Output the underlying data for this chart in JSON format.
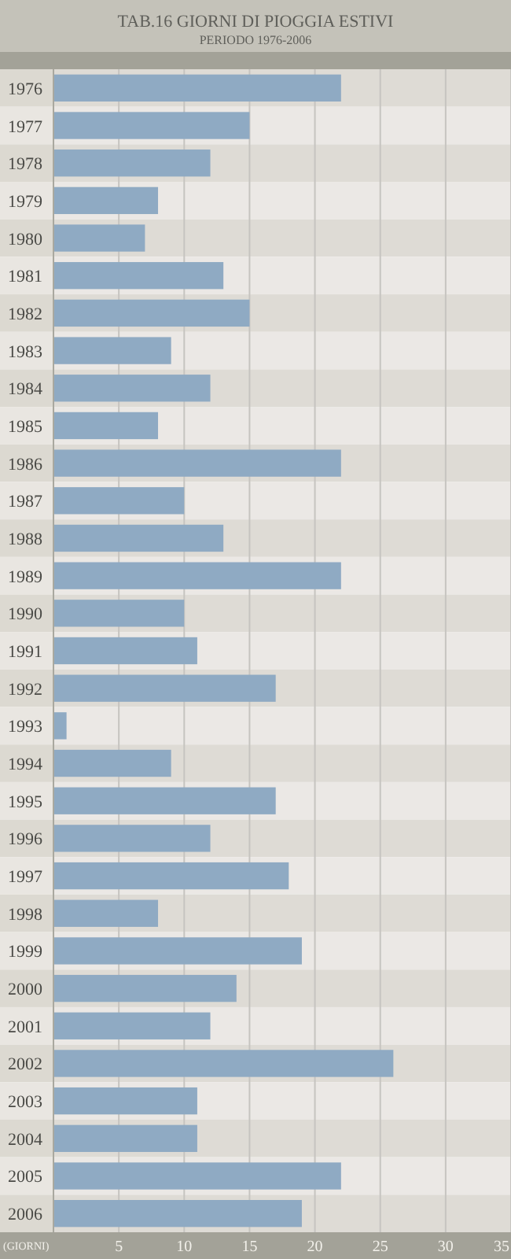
{
  "chart_data": {
    "type": "bar",
    "orientation": "horizontal",
    "title": "TAB.16  GIORNI DI PIOGGIA ESTIVI",
    "subtitle": "PERIODO 1976-2006",
    "xlabel": "(GIORNI)",
    "categories": [
      "1976",
      "1977",
      "1978",
      "1979",
      "1980",
      "1981",
      "1982",
      "1983",
      "1984",
      "1985",
      "1986",
      "1987",
      "1988",
      "1989",
      "1990",
      "1991",
      "1992",
      "1993",
      "1994",
      "1995",
      "1996",
      "1997",
      "1998",
      "1999",
      "2000",
      "2001",
      "2002",
      "2003",
      "2004",
      "2005",
      "2006"
    ],
    "values": [
      22,
      15,
      12,
      8,
      7,
      13,
      15,
      9,
      12,
      8,
      22,
      10,
      13,
      22,
      10,
      11,
      17,
      1,
      9,
      17,
      12,
      18,
      8,
      19,
      14,
      12,
      26,
      11,
      11,
      22,
      19
    ],
    "color": "#8faac3",
    "xlim": [
      0,
      35
    ],
    "xticks": [
      5,
      10,
      15,
      20,
      25,
      30,
      35
    ],
    "grid": "x"
  }
}
